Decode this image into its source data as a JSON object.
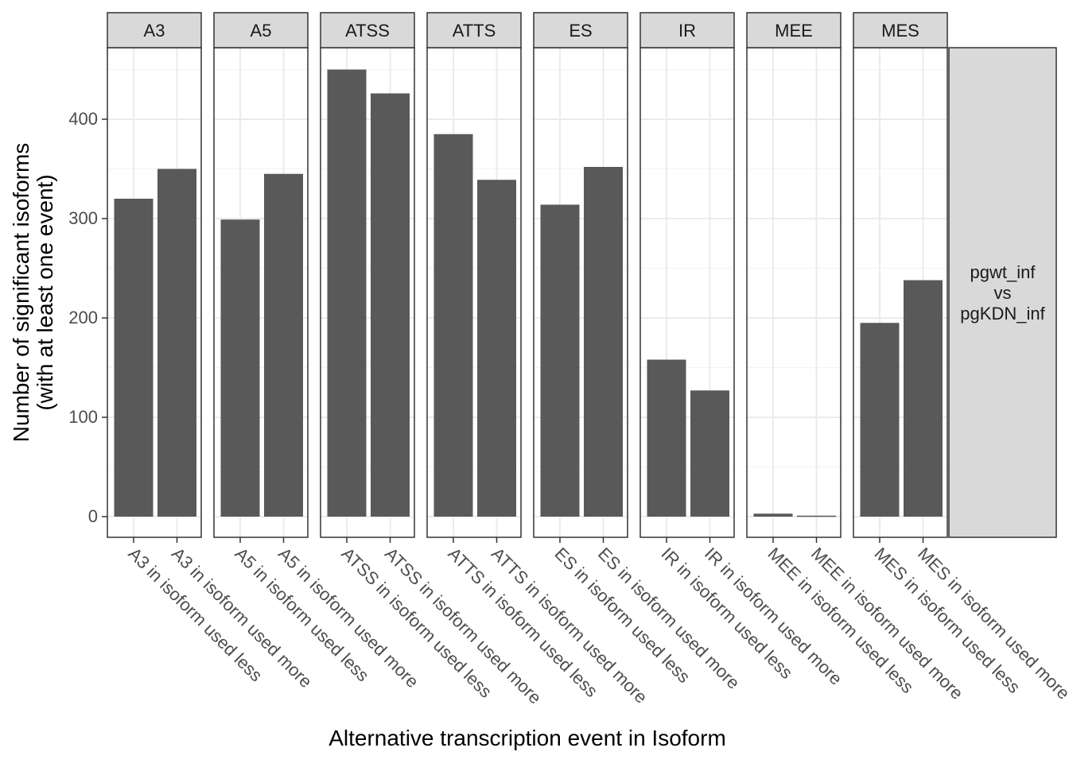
{
  "chart_data": {
    "type": "bar",
    "facet_labels": [
      "A3",
      "A5",
      "ATSS",
      "ATTS",
      "ES",
      "IR",
      "MEE",
      "MES"
    ],
    "strip_label_lines": [
      "pgwt_inf",
      "vs",
      "pgKDN_inf"
    ],
    "xlabel": "Alternative transcription event in Isoform",
    "ylabel_lines": [
      "Number of significant isoforms",
      "(with at least one event)"
    ],
    "ylim": [
      -21,
      473
    ],
    "yticks": [
      0,
      100,
      200,
      300,
      400
    ],
    "grid": true,
    "bar_color": "#595959",
    "strip_color": "#d9d9d9",
    "facets": [
      {
        "label": "A3",
        "categories": [
          "A3 in isoform used less",
          "A3 in isoform used more"
        ],
        "values": [
          320,
          350
        ]
      },
      {
        "label": "A5",
        "categories": [
          "A5 in isoform used less",
          "A5 in isoform used more"
        ],
        "values": [
          299,
          345
        ]
      },
      {
        "label": "ATSS",
        "categories": [
          "ATSS in isoform used less",
          "ATSS in isoform used more"
        ],
        "values": [
          450,
          426
        ]
      },
      {
        "label": "ATTS",
        "categories": [
          "ATTS in isoform used less",
          "ATTS in isoform used more"
        ],
        "values": [
          385,
          339
        ]
      },
      {
        "label": "ES",
        "categories": [
          "ES in isoform used less",
          "ES in isoform used more"
        ],
        "values": [
          314,
          352
        ]
      },
      {
        "label": "IR",
        "categories": [
          "IR in isoform used less",
          "IR in isoform used more"
        ],
        "values": [
          158,
          127
        ]
      },
      {
        "label": "MEE",
        "categories": [
          "MEE in isoform used less",
          "MEE in isoform used more"
        ],
        "values": [
          3,
          1
        ]
      },
      {
        "label": "MES",
        "categories": [
          "MES in isoform used less",
          "MES in isoform used more"
        ],
        "values": [
          195,
          238
        ]
      }
    ]
  }
}
